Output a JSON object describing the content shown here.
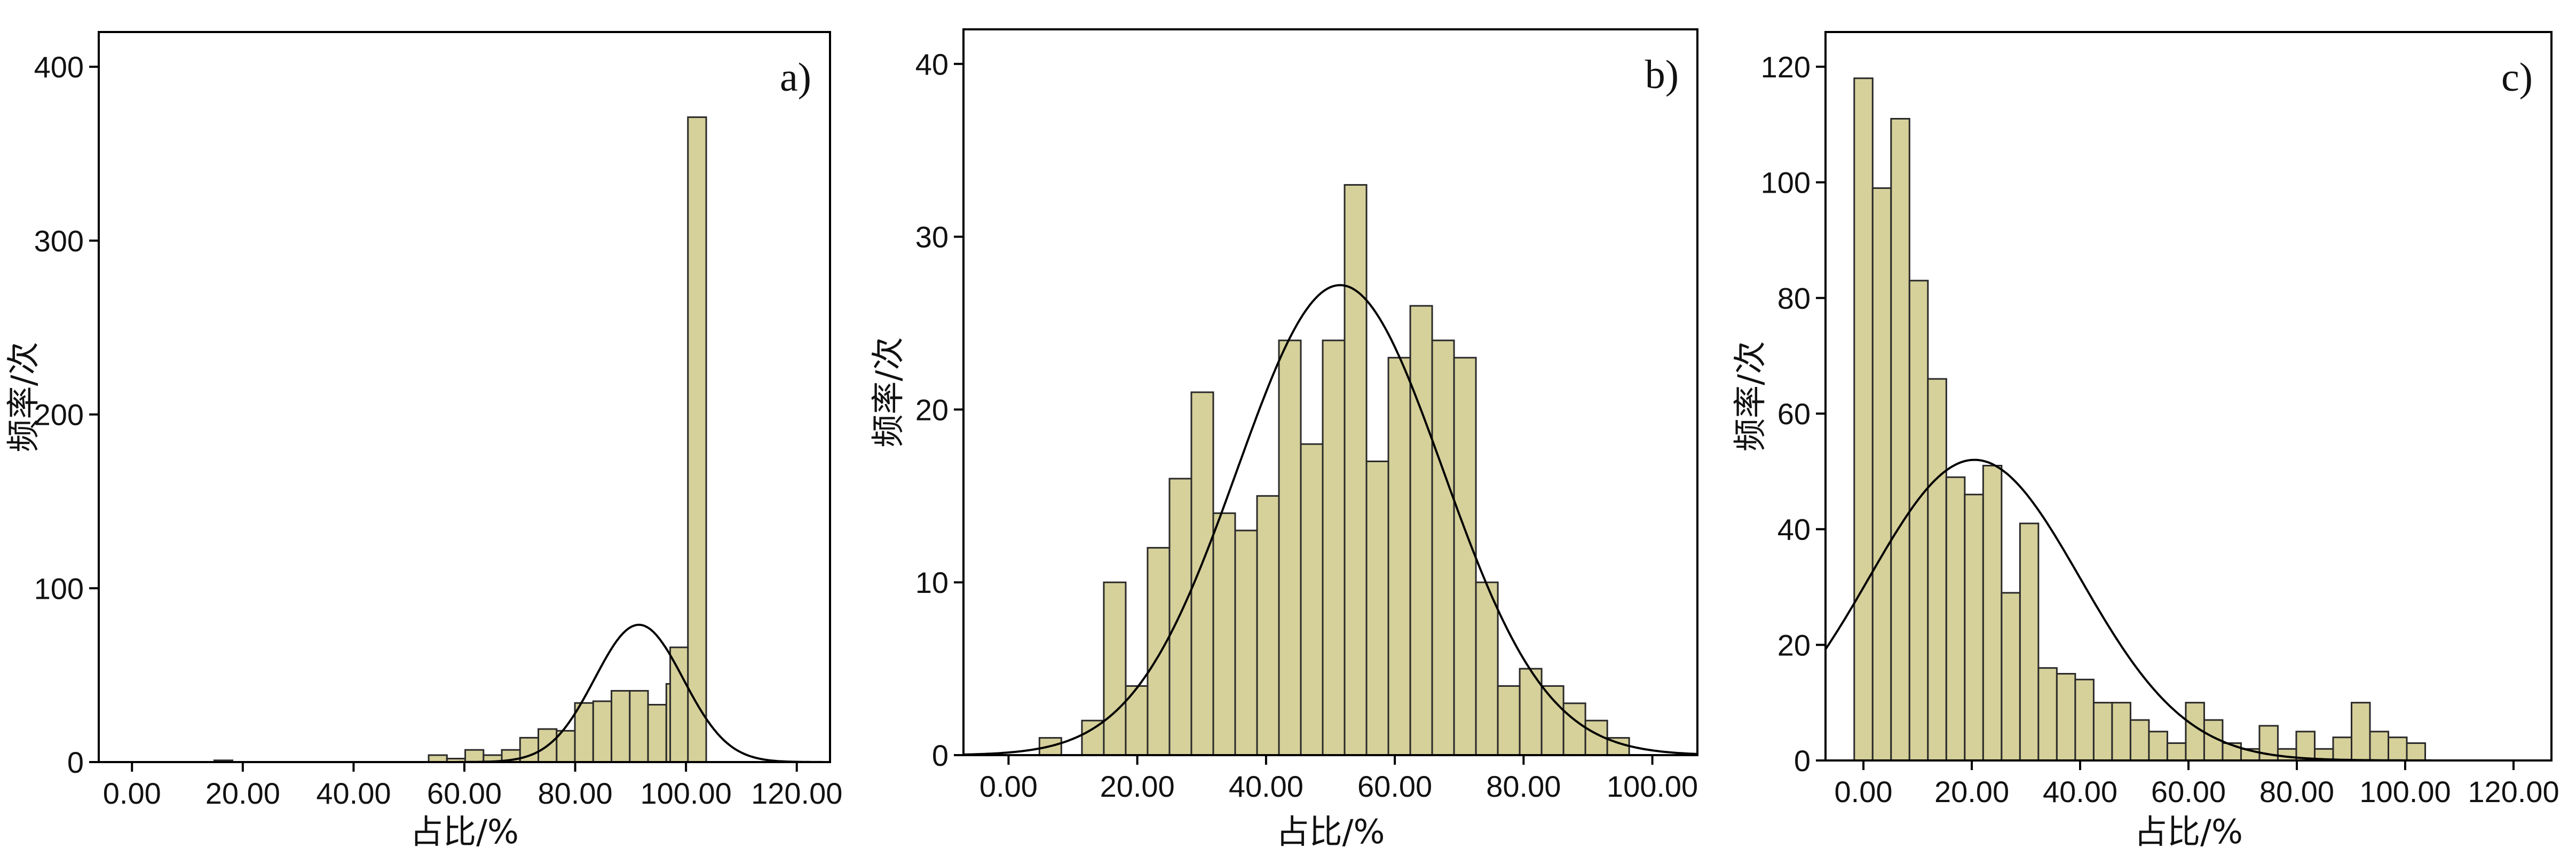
{
  "chart_data": [
    {
      "type": "bar",
      "panel_label": "a)",
      "xlabel": "占比/%",
      "ylabel": "频率/次",
      "xlim": [
        -6,
        126
      ],
      "ylim": [
        0,
        420
      ],
      "x_ticks": [
        "0.00",
        "20.00",
        "40.00",
        "60.00",
        "80.00",
        "100.00",
        "120.00"
      ],
      "y_ticks": [
        "0",
        "100",
        "200",
        "300",
        "400"
      ],
      "bin_width": 3.3,
      "bins": [
        {
          "x": 16.5,
          "v": 1
        },
        {
          "x": 55.2,
          "v": 4
        },
        {
          "x": 58.5,
          "v": 2
        },
        {
          "x": 61.8,
          "v": 7
        },
        {
          "x": 65.1,
          "v": 4
        },
        {
          "x": 68.4,
          "v": 7
        },
        {
          "x": 71.7,
          "v": 14
        },
        {
          "x": 75.0,
          "v": 19
        },
        {
          "x": 78.3,
          "v": 18
        },
        {
          "x": 81.6,
          "v": 34
        },
        {
          "x": 84.9,
          "v": 35
        },
        {
          "x": 88.2,
          "v": 41
        },
        {
          "x": 91.5,
          "v": 41
        },
        {
          "x": 94.8,
          "v": 33
        },
        {
          "x": 98.1,
          "v": 45
        },
        {
          "x": 98.8,
          "v": 66
        },
        {
          "x": 102.0,
          "v": 371
        }
      ],
      "normal_curve": {
        "mean": 91.5,
        "sd": 8.0,
        "peak": 79
      }
    },
    {
      "type": "bar",
      "panel_label": "b)",
      "xlabel": "占比/%",
      "ylabel": "频率/次",
      "xlim": [
        -7,
        107
      ],
      "ylim": [
        0,
        42
      ],
      "x_ticks": [
        "0.00",
        "20.00",
        "40.00",
        "60.00",
        "80.00",
        "100.00"
      ],
      "y_ticks": [
        "0",
        "10",
        "20",
        "30",
        "40"
      ],
      "bin_width": 3.4,
      "bins": [
        {
          "x": 6.5,
          "v": 1
        },
        {
          "x": 13.1,
          "v": 2
        },
        {
          "x": 16.5,
          "v": 10
        },
        {
          "x": 19.9,
          "v": 4
        },
        {
          "x": 23.3,
          "v": 12
        },
        {
          "x": 26.7,
          "v": 16
        },
        {
          "x": 30.1,
          "v": 21
        },
        {
          "x": 33.5,
          "v": 14
        },
        {
          "x": 36.9,
          "v": 13
        },
        {
          "x": 40.3,
          "v": 15
        },
        {
          "x": 43.7,
          "v": 24
        },
        {
          "x": 47.1,
          "v": 18
        },
        {
          "x": 50.5,
          "v": 24
        },
        {
          "x": 53.9,
          "v": 33
        },
        {
          "x": 57.3,
          "v": 17
        },
        {
          "x": 60.7,
          "v": 23
        },
        {
          "x": 64.1,
          "v": 26
        },
        {
          "x": 67.5,
          "v": 24
        },
        {
          "x": 70.9,
          "v": 23
        },
        {
          "x": 74.3,
          "v": 10
        },
        {
          "x": 77.7,
          "v": 4
        },
        {
          "x": 81.1,
          "v": 5
        },
        {
          "x": 84.5,
          "v": 4
        },
        {
          "x": 87.9,
          "v": 3
        },
        {
          "x": 91.3,
          "v": 2
        },
        {
          "x": 94.7,
          "v": 1
        }
      ],
      "normal_curve": {
        "mean": 51.5,
        "sd": 16.0,
        "peak": 27.2
      }
    },
    {
      "type": "bar",
      "panel_label": "c)",
      "xlabel": "占比/%",
      "ylabel": "频率/次",
      "xlim": [
        -7,
        127
      ],
      "ylim": [
        0,
        126
      ],
      "x_ticks": [
        "0.00",
        "20.00",
        "40.00",
        "60.00",
        "80.00",
        "100.00",
        "120.00"
      ],
      "y_ticks": [
        "0",
        "20",
        "40",
        "60",
        "80",
        "100",
        "120"
      ],
      "bin_width": 3.4,
      "bins": [
        {
          "x": 0.0,
          "v": 118
        },
        {
          "x": 3.4,
          "v": 99
        },
        {
          "x": 6.8,
          "v": 111
        },
        {
          "x": 10.2,
          "v": 83
        },
        {
          "x": 13.6,
          "v": 66
        },
        {
          "x": 17.0,
          "v": 49
        },
        {
          "x": 20.4,
          "v": 46
        },
        {
          "x": 23.8,
          "v": 51
        },
        {
          "x": 27.2,
          "v": 29
        },
        {
          "x": 30.6,
          "v": 41
        },
        {
          "x": 34.0,
          "v": 16
        },
        {
          "x": 37.4,
          "v": 15
        },
        {
          "x": 40.8,
          "v": 14
        },
        {
          "x": 44.2,
          "v": 10
        },
        {
          "x": 47.6,
          "v": 10
        },
        {
          "x": 51.0,
          "v": 7
        },
        {
          "x": 54.4,
          "v": 5
        },
        {
          "x": 57.8,
          "v": 3
        },
        {
          "x": 61.2,
          "v": 10
        },
        {
          "x": 64.6,
          "v": 7
        },
        {
          "x": 68.0,
          "v": 3
        },
        {
          "x": 71.4,
          "v": 2
        },
        {
          "x": 74.8,
          "v": 6
        },
        {
          "x": 78.2,
          "v": 2
        },
        {
          "x": 81.6,
          "v": 5
        },
        {
          "x": 85.0,
          "v": 2
        },
        {
          "x": 88.4,
          "v": 4
        },
        {
          "x": 91.8,
          "v": 10
        },
        {
          "x": 95.2,
          "v": 5
        },
        {
          "x": 98.6,
          "v": 4
        },
        {
          "x": 102.0,
          "v": 3
        }
      ],
      "normal_curve": {
        "mean": 20.5,
        "sd": 19.5,
        "peak": 52
      }
    }
  ],
  "colors": {
    "bar_fill": "#d6d09a",
    "bar_stroke": "#2a2a2a",
    "curve": "#000000",
    "frame": "#000000"
  }
}
